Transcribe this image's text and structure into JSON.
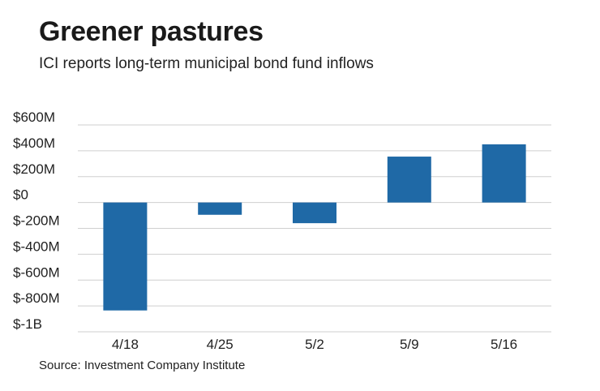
{
  "header": {
    "title": "Greener pastures",
    "subtitle": "ICI reports long-term municipal bond fund inflows"
  },
  "footer": {
    "source": "Source: Investment Company Institute"
  },
  "colors": {
    "bar": "#1f69a6",
    "grid": "#cfcfcf",
    "text": "#222222"
  },
  "chart_data": {
    "type": "bar",
    "title": "Greener pastures",
    "subtitle": "ICI reports long-term municipal bond fund inflows",
    "xlabel": "",
    "ylabel": "",
    "categories": [
      "4/18",
      "4/25",
      "5/2",
      "5/9",
      "5/16"
    ],
    "values": [
      -835,
      -95,
      -160,
      355,
      450
    ],
    "unit": "$M",
    "ylim": [
      -1000,
      600
    ],
    "yticks": [
      600,
      400,
      200,
      0,
      -200,
      -400,
      -600,
      -800,
      -1000
    ],
    "ytick_labels": [
      "$600M",
      "$400M",
      "$200M",
      "$0",
      "$-200M",
      "$-400M",
      "$-600M",
      "$-800M",
      "$-1B"
    ],
    "grid": true,
    "legend": "none"
  }
}
